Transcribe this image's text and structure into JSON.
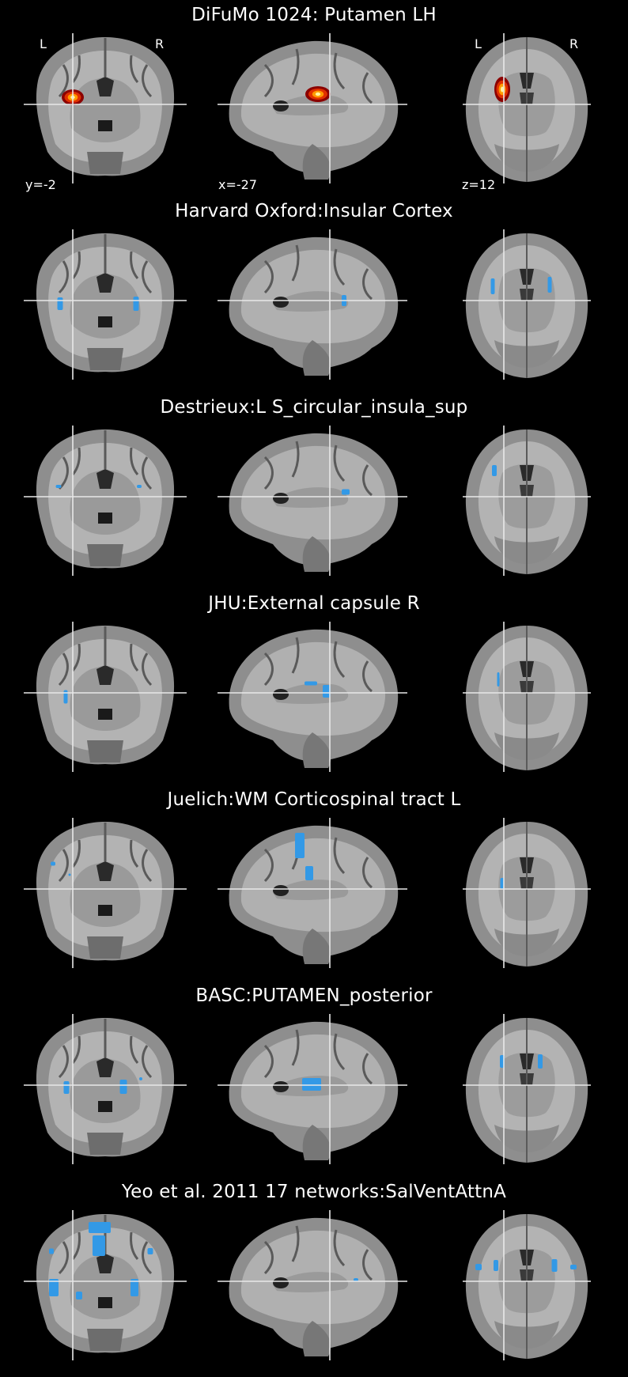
{
  "rows": [
    {
      "title": "DiFuMo 1024: Putamen LH",
      "kind": "heat",
      "labels": {
        "y": "y=-2",
        "x": "x=-27",
        "z": "z=12",
        "left": "L",
        "right": "R"
      },
      "blobs": {
        "coronal": [
          [
            62,
            81,
            14,
            10
          ]
        ],
        "sagittal": [
          [
            127,
            77,
            16,
            10
          ]
        ],
        "axial": [
          [
            50,
            71,
            10,
            16
          ]
        ]
      }
    },
    {
      "title": "Harvard Oxford:Insular Cortex",
      "kind": "blue",
      "blobs": {
        "coronal": [
          [
            46,
            94,
            7,
            16
          ],
          [
            142,
            94,
            7,
            18
          ]
        ],
        "sagittal": [
          [
            160,
            90,
            6,
            14
          ]
        ],
        "axial": [
          [
            38,
            72,
            5,
            20
          ],
          [
            110,
            70,
            5,
            20
          ]
        ]
      }
    },
    {
      "title": "Destrieux:L S_circular_insula_sup",
      "kind": "blue",
      "blobs": {
        "coronal": [
          [
            44,
            77,
            7,
            4
          ],
          [
            146,
            77,
            6,
            4
          ]
        ],
        "sagittal": [
          [
            162,
            84,
            10,
            7
          ]
        ],
        "axial": [
          [
            40,
            57,
            6,
            14
          ]
        ]
      }
    },
    {
      "title": "JHU:External capsule R",
      "kind": "blue",
      "blobs": {
        "coronal": [
          [
            53,
            95,
            5,
            17
          ]
        ],
        "sagittal": [
          [
            118,
            78,
            16,
            5
          ],
          [
            138,
            88,
            10,
            16
          ]
        ],
        "axial": [
          [
            45,
            73,
            3,
            18
          ]
        ]
      }
    },
    {
      "title": "Juelich:WM Corticospinal tract L",
      "kind": "blue",
      "blobs": {
        "coronal": [
          [
            37,
            58,
            6,
            5
          ],
          [
            58,
            72,
            3,
            3
          ]
        ],
        "sagittal": [
          [
            104,
            35,
            12,
            32
          ],
          [
            116,
            70,
            10,
            18
          ]
        ],
        "axial": [
          [
            50,
            83,
            5,
            14
          ]
        ]
      }
    },
    {
      "title": "BASC:PUTAMEN_posterior",
      "kind": "blue",
      "blobs": {
        "coronal": [
          [
            54,
            93,
            7,
            16
          ],
          [
            126,
            92,
            9,
            18
          ],
          [
            148,
            82,
            4,
            4
          ]
        ],
        "sagittal": [
          [
            119,
            89,
            24,
            16
          ]
        ],
        "axial": [
          [
            50,
            60,
            6,
            16
          ],
          [
            98,
            60,
            6,
            18
          ]
        ]
      }
    },
    {
      "title": "Yeo et al. 2011 17 networks:SalVentAttnA",
      "kind": "blue",
      "blobs": {
        "coronal": [
          [
            96,
            22,
            28,
            14
          ],
          [
            95,
            45,
            16,
            26
          ],
          [
            35,
            52,
            6,
            7
          ],
          [
            160,
            52,
            7,
            8
          ],
          [
            38,
            98,
            12,
            22
          ],
          [
            140,
            98,
            10,
            22
          ],
          [
            70,
            108,
            8,
            10
          ]
        ],
        "sagittal": [
          [
            175,
            88,
            6,
            4
          ]
        ],
        "axial": [
          [
            20,
            72,
            8,
            8
          ],
          [
            42,
            70,
            6,
            14
          ],
          [
            116,
            70,
            7,
            16
          ],
          [
            140,
            72,
            8,
            6
          ]
        ]
      }
    }
  ]
}
